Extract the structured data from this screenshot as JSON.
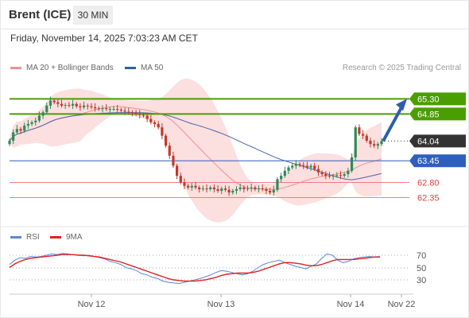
{
  "header": {
    "title": "Brent (ICE)",
    "timeframe": "30 MIN",
    "datetime": "Friday, November 14, 2025 7:03:23 AM CET"
  },
  "legend": {
    "ma20_label": "MA 20 + Bollinger Bands",
    "ma50_label": "MA 50",
    "source": "Research © 2025 Trading Central"
  },
  "rsi_legend": {
    "rsi_label": "RSI",
    "ma_label": "9MA"
  },
  "colors": {
    "green_level": "#4a9e00",
    "blue_level": "#2e5fbe",
    "red_level": "#f08080",
    "candle_up": "#2e8b57",
    "candle_down": "#c0392b",
    "bollinger_fill": "#fbd9d9",
    "ma20": "#f29090",
    "ma50": "#4466aa",
    "arrow": "#2e5fa8",
    "rsi": "#5b87d6",
    "rsi_ma": "#e02020",
    "current_price_bg": "#333333"
  },
  "chart_data": [
    {
      "type": "candlestick",
      "title": "Brent (ICE) 30 MIN",
      "ylim": [
        61.6,
        66.0
      ],
      "x_tick_labels": [
        "Nov 12",
        "Nov 13",
        "Nov 14",
        "Nov 22"
      ],
      "price_levels": [
        {
          "label": "65.30",
          "value": 65.3,
          "style": "resistance"
        },
        {
          "label": "64.85",
          "value": 64.85,
          "style": "resistance"
        },
        {
          "label": "64.04",
          "value": 64.04,
          "style": "current"
        },
        {
          "label": "63.45",
          "value": 63.45,
          "style": "pivot"
        },
        {
          "label": "62.80",
          "value": 62.8,
          "style": "support"
        },
        {
          "label": "62.35",
          "value": 62.35,
          "style": "support"
        }
      ],
      "series": [
        {
          "name": "MA 20 + Bollinger Bands",
          "kind": "ma20"
        },
        {
          "name": "MA 50",
          "kind": "ma50"
        }
      ],
      "close": [
        64.05,
        64.3,
        64.4,
        64.35,
        64.5,
        64.55,
        64.6,
        64.65,
        64.8,
        64.9,
        65.1,
        65.25,
        65.2,
        65.15,
        65.1,
        65.12,
        65.1,
        65.15,
        65.08,
        65.05,
        65.1,
        65.08,
        65.05,
        65.02,
        65.0,
        65.02,
        65.0,
        65.0,
        65.0,
        64.98,
        64.95,
        64.92,
        64.9,
        64.88,
        64.85,
        64.82,
        64.8,
        64.7,
        64.6,
        64.55,
        64.45,
        64.2,
        63.9,
        63.6,
        63.3,
        63.0,
        62.8,
        62.7,
        62.65,
        62.7,
        62.65,
        62.6,
        62.62,
        62.6,
        62.65,
        62.6,
        62.55,
        62.62,
        62.58,
        62.5,
        62.55,
        62.6,
        62.65,
        62.6,
        62.62,
        62.65,
        62.6,
        62.62,
        62.6,
        62.55,
        62.5,
        62.58,
        62.9,
        63.0,
        63.15,
        63.25,
        63.3,
        63.35,
        63.32,
        63.3,
        63.25,
        63.3,
        63.2,
        63.1,
        63.05,
        63.0,
        62.98,
        63.0,
        63.02,
        63.0,
        63.05,
        63.15,
        63.55,
        64.45,
        64.25,
        64.2,
        64.05,
        63.95,
        63.9,
        63.95,
        64.04
      ]
    },
    {
      "type": "line",
      "title": "RSI",
      "ylim": [
        0,
        100
      ],
      "y_tick_labels": [
        "70",
        "50",
        "30"
      ],
      "series": [
        {
          "name": "RSI",
          "values": [
            55,
            62,
            66,
            65,
            68,
            67,
            68,
            70,
            72,
            71,
            73,
            72,
            71,
            70,
            69,
            70,
            68,
            66,
            64,
            60,
            58,
            55,
            50,
            48,
            45,
            40,
            38,
            34,
            32,
            28,
            26,
            25,
            24,
            26,
            28,
            30,
            32,
            35,
            38,
            42,
            45,
            44,
            42,
            40,
            38,
            40,
            44,
            50,
            55,
            58,
            60,
            62,
            58,
            55,
            52,
            50,
            48,
            52,
            56,
            65,
            72,
            70,
            62,
            58,
            60,
            64,
            66,
            67,
            68,
            67,
            68
          ]
        },
        {
          "name": "9MA",
          "values": [
            50,
            56,
            60,
            63,
            65,
            66,
            67,
            68,
            69,
            70,
            71,
            71,
            71,
            70,
            70,
            69,
            68,
            67,
            65,
            63,
            61,
            59,
            56,
            53,
            50,
            47,
            44,
            41,
            38,
            35,
            32,
            30,
            29,
            28,
            28,
            28,
            29,
            30,
            32,
            34,
            37,
            39,
            40,
            41,
            41,
            41,
            42,
            44,
            47,
            50,
            53,
            56,
            58,
            58,
            57,
            56,
            54,
            53,
            53,
            55,
            58,
            61,
            63,
            63,
            63,
            63,
            64,
            65,
            66,
            67,
            67
          ]
        }
      ]
    }
  ]
}
